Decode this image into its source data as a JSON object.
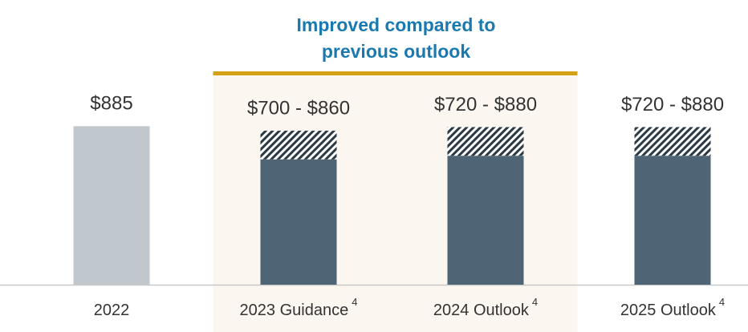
{
  "chart_data": {
    "type": "range_bar",
    "annotation": [
      "Improved compared to",
      "previous outlook"
    ],
    "categories": [
      "2022",
      "2023 Guidance",
      "2024 Outlook",
      "2025 Outlook"
    ],
    "footnotes": [
      null,
      "4",
      "4",
      "4"
    ],
    "values": [
      885,
      700,
      720,
      720
    ],
    "range_high": [
      null,
      860,
      880,
      880
    ],
    "value_labels": [
      "$885",
      "$700 - $860",
      "$720 - $880",
      "$720 - $880"
    ],
    "colors": [
      "#c0c8ce",
      "#4f6575",
      "#4f6575",
      "#4f6575"
    ],
    "highlight": [
      1,
      3
    ],
    "ylim": [
      0,
      900
    ]
  }
}
